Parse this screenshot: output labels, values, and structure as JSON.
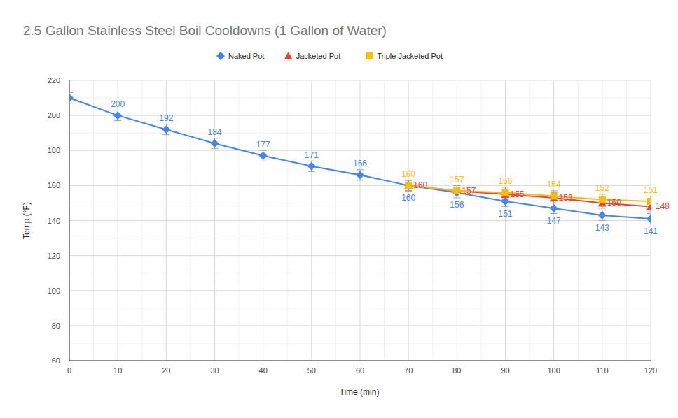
{
  "chart_data": {
    "type": "line",
    "title": "2.5 Gallon Stainless Steel Boil Cooldowns (1 Gallon of Water)",
    "x_label": "Time (min)",
    "y_label": "Temp (°F)",
    "x": [
      0,
      10,
      20,
      30,
      40,
      50,
      60,
      70,
      80,
      90,
      100,
      110,
      120
    ],
    "series": [
      {
        "name": "Naked Pot",
        "color": "#4285f4",
        "marker": "diamond",
        "values": [
          210,
          200,
          192,
          184,
          177,
          171,
          166,
          160,
          156,
          151,
          147,
          143,
          141
        ],
        "value_labels": [
          null,
          "200",
          "192",
          "184",
          "177",
          "171",
          "166",
          "160",
          "156",
          "151",
          "147",
          "143",
          "141"
        ],
        "errors": [
          3,
          3,
          3,
          3,
          3,
          3,
          3,
          3,
          3,
          3,
          3,
          3,
          3
        ]
      },
      {
        "name": "Jacketed Pot",
        "color": "#ea4335",
        "marker": "triangle",
        "values": [
          null,
          null,
          null,
          null,
          null,
          null,
          null,
          160,
          157,
          155,
          153,
          150,
          148
        ],
        "errors": [
          null,
          null,
          null,
          null,
          null,
          null,
          null,
          3,
          3,
          3,
          3,
          3,
          3
        ]
      },
      {
        "name": "Triple Jacketed Pot",
        "color": "#fbbc04",
        "marker": "square",
        "values": [
          null,
          null,
          null,
          null,
          null,
          null,
          null,
          160,
          157,
          156,
          154,
          152,
          151
        ],
        "errors": [
          null,
          null,
          null,
          null,
          null,
          null,
          null,
          3,
          3,
          3,
          3,
          3,
          3
        ]
      }
    ],
    "xlim": [
      0,
      120
    ],
    "xticks": [
      0,
      10,
      20,
      30,
      40,
      50,
      60,
      70,
      80,
      90,
      100,
      110,
      120
    ],
    "ylim": [
      60,
      220
    ],
    "yticks": [
      60,
      80,
      100,
      120,
      140,
      160,
      180,
      200,
      220
    ],
    "grid": true,
    "legend": "top",
    "data_labels": true
  }
}
